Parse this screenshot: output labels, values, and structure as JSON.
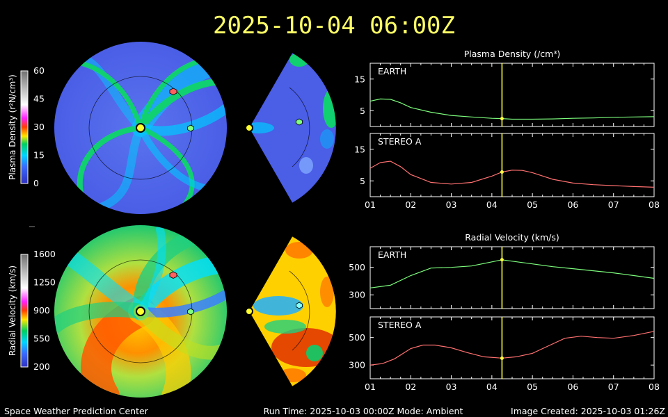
{
  "header": {
    "timestamp": "2025-10-04 06:00Z"
  },
  "footer": {
    "left": "Space Weather Prediction Center",
    "center": "Run Time: 2025-10-03 00:00Z  Mode: Ambient",
    "right": "Image Created: 2025-10-03 01:26Z"
  },
  "colorbars": [
    {
      "label": "Plasma Density (r²N/cm³)",
      "ticks": [
        "60",
        "45",
        "30",
        "15",
        "0"
      ]
    },
    {
      "label": "Radial Velocity (km/s)",
      "ticks": [
        "1600",
        "1250",
        "900",
        "550",
        "200"
      ]
    }
  ],
  "colors": {
    "earth": "#7CFC7C",
    "stereo_a": "#FF7070",
    "marker": "#FFFF40",
    "title": "#FFFF66"
  },
  "chart_data": [
    {
      "type": "line",
      "title": "Plasma Density (/cm³)",
      "x_ticks": [
        "01",
        "02",
        "03",
        "04",
        "05",
        "06",
        "07",
        "08"
      ],
      "xlim": [
        1,
        8
      ],
      "current_time": 4.25,
      "panels": [
        {
          "name": "EARTH",
          "color": "#7CFC7C",
          "ylim": [
            0,
            20
          ],
          "y_ticks": [
            15,
            5
          ],
          "x": [
            1.0,
            1.25,
            1.5,
            1.75,
            2.0,
            2.5,
            3.0,
            3.5,
            4.0,
            4.25,
            4.5,
            5.0,
            5.5,
            6.0,
            6.5,
            7.0,
            7.5,
            8.0
          ],
          "y": [
            8.0,
            8.7,
            8.6,
            7.5,
            6.0,
            4.5,
            3.5,
            3.0,
            2.6,
            2.5,
            2.3,
            2.3,
            2.4,
            2.6,
            2.7,
            2.9,
            3.0,
            3.1
          ]
        },
        {
          "name": "STEREO A",
          "color": "#FF7070",
          "ylim": [
            0,
            20
          ],
          "y_ticks": [
            15,
            5
          ],
          "x": [
            1.0,
            1.25,
            1.5,
            1.75,
            2.0,
            2.5,
            3.0,
            3.5,
            4.0,
            4.25,
            4.5,
            4.75,
            5.0,
            5.5,
            6.0,
            6.5,
            7.0,
            7.5,
            8.0
          ],
          "y": [
            9.0,
            10.8,
            11.2,
            9.5,
            7.0,
            4.5,
            4.0,
            4.5,
            6.5,
            7.8,
            8.4,
            8.3,
            7.6,
            5.5,
            4.3,
            3.8,
            3.5,
            3.2,
            3.0
          ]
        }
      ]
    },
    {
      "type": "line",
      "title": "Radial Velocity (km/s)",
      "x_ticks": [
        "01",
        "02",
        "03",
        "04",
        "05",
        "06",
        "07",
        "08"
      ],
      "xlim": [
        1,
        8
      ],
      "current_time": 4.25,
      "panels": [
        {
          "name": "EARTH",
          "color": "#7CFC7C",
          "ylim": [
            200,
            650
          ],
          "y_ticks": [
            500,
            300
          ],
          "x": [
            1.0,
            1.5,
            2.0,
            2.5,
            3.0,
            3.5,
            4.0,
            4.25,
            4.5,
            5.0,
            5.5,
            6.0,
            6.5,
            7.0,
            7.5,
            8.0
          ],
          "y": [
            350,
            370,
            440,
            495,
            500,
            510,
            540,
            555,
            545,
            525,
            505,
            490,
            475,
            460,
            440,
            420
          ]
        },
        {
          "name": "STEREO A",
          "color": "#FF7070",
          "ylim": [
            200,
            650
          ],
          "y_ticks": [
            500,
            300
          ],
          "x": [
            1.0,
            1.3,
            1.6,
            2.0,
            2.3,
            2.6,
            3.0,
            3.4,
            3.8,
            4.25,
            4.6,
            5.0,
            5.4,
            5.8,
            6.2,
            6.6,
            7.0,
            7.5,
            8.0
          ],
          "y": [
            300,
            310,
            345,
            420,
            445,
            445,
            425,
            390,
            360,
            350,
            360,
            385,
            440,
            495,
            510,
            500,
            495,
            515,
            545
          ]
        }
      ]
    }
  ]
}
